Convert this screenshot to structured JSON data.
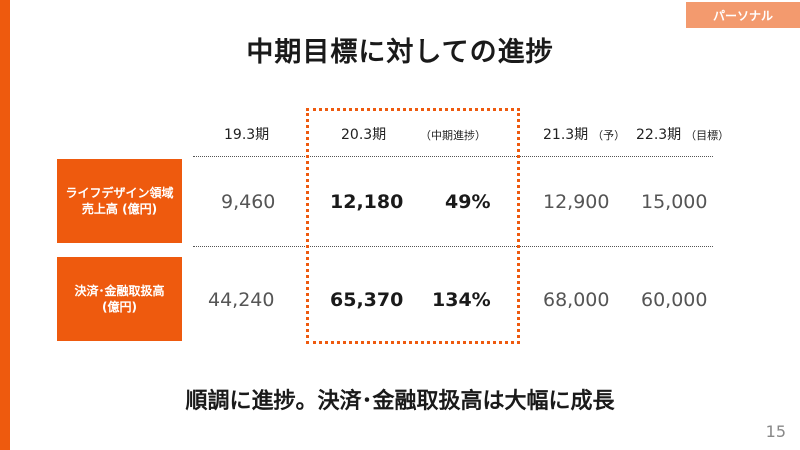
{
  "header": {
    "tag": "パーソナル",
    "title": "中期目標に対しての進捗"
  },
  "columns": {
    "fy19": "19.3期",
    "fy20": "20.3期",
    "progress": "（中期進捗）",
    "fy21": "21.3期",
    "fy21_note": "（予）",
    "fy22": "22.3期",
    "fy22_note": "（目標）"
  },
  "rows": [
    {
      "label_line1": "ライフデザイン領域",
      "label_line2": "売上高 (億円)",
      "fy19": "9,460",
      "fy20": "12,180",
      "progress": "49%",
      "fy21": "12,900",
      "fy22": "15,000"
    },
    {
      "label_line1": "決済･金融取扱高",
      "label_line2": "(億円)",
      "fy19": "44,240",
      "fy20": "65,370",
      "progress": "134%",
      "fy21": "68,000",
      "fy22": "60,000"
    }
  ],
  "summary": "順調に進捗。決済･金融取扱高は大幅に成長",
  "page_number": "15",
  "colors": {
    "accent": "#ee5a0e",
    "tag_bg": "#f39a6e"
  }
}
